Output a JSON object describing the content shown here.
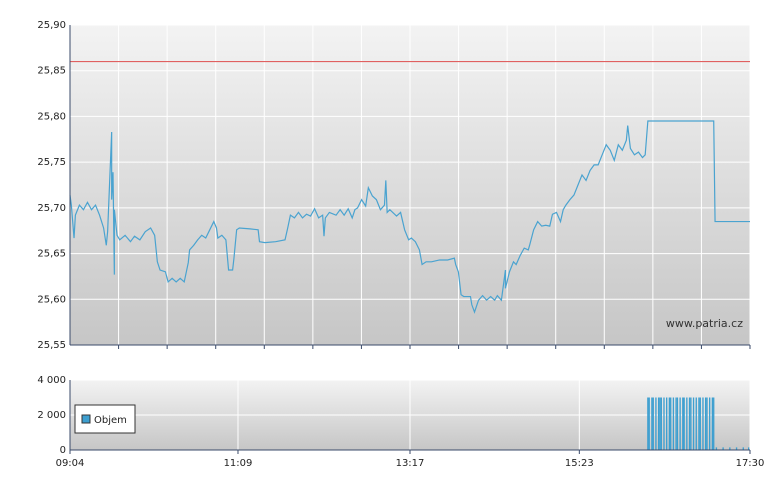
{
  "chart_data": [
    {
      "type": "line",
      "color": "#4aa3d0",
      "x": [
        "09:04",
        "09:05",
        "09:07",
        "09:08",
        "09:11",
        "09:14",
        "09:17",
        "09:20",
        "09:23",
        "09:26",
        "09:29",
        "09:31",
        "09:32",
        "09:35",
        "09:35",
        "09:36",
        "09:37",
        "09:37",
        "09:39",
        "09:41",
        "09:45",
        "09:49",
        "09:52",
        "09:56",
        "10:00",
        "10:04",
        "10:07",
        "10:09",
        "10:11",
        "10:15",
        "10:17",
        "10:20",
        "10:23",
        "10:26",
        "10:29",
        "10:32",
        "10:33",
        "10:36",
        "10:39",
        "10:42",
        "10:45",
        "10:48",
        "10:51",
        "10:53",
        "10:54",
        "10:57",
        "11:00",
        "11:02",
        "11:05",
        "11:06",
        "11:08",
        "11:10",
        "11:18",
        "11:24",
        "11:25",
        "11:29",
        "11:37",
        "11:44",
        "11:46",
        "11:48",
        "11:51",
        "11:54",
        "11:57",
        "12:00",
        "12:03",
        "12:06",
        "12:09",
        "12:12",
        "12:13",
        "12:14",
        "12:17",
        "12:22",
        "12:25",
        "12:28",
        "12:31",
        "12:34",
        "12:36",
        "12:38",
        "12:41",
        "12:44",
        "12:46",
        "12:49",
        "12:52",
        "12:55",
        "12:58",
        "12:59",
        "13:00",
        "13:02",
        "13:07",
        "13:10",
        "13:13",
        "13:16",
        "13:18",
        "13:21",
        "13:24",
        "13:26",
        "13:29",
        "13:33",
        "13:39",
        "13:45",
        "13:50",
        "13:51",
        "13:53",
        "13:55",
        "13:57",
        "14:02",
        "14:03",
        "14:05",
        "14:08",
        "14:11",
        "14:14",
        "14:17",
        "14:20",
        "14:22",
        "14:25",
        "14:28",
        "14:28",
        "14:31",
        "14:34",
        "14:36",
        "14:39",
        "14:42",
        "14:45",
        "14:46",
        "14:49",
        "14:52",
        "14:55",
        "14:58",
        "15:01",
        "15:03",
        "15:06",
        "15:09",
        "15:11",
        "15:13",
        "15:16",
        "15:19",
        "15:22",
        "15:25",
        "15:28",
        "15:31",
        "15:34",
        "15:37",
        "15:40",
        "15:43",
        "15:46",
        "15:49",
        "15:52",
        "15:55",
        "15:58",
        "15:59",
        "16:01",
        "16:04",
        "16:07",
        "16:10",
        "16:12",
        "16:14",
        "17:03",
        "17:04",
        "17:30"
      ],
      "values": [
        25.714,
        25.703,
        25.667,
        25.692,
        25.703,
        25.698,
        25.706,
        25.698,
        25.703,
        25.692,
        25.678,
        25.659,
        25.674,
        25.783,
        25.709,
        25.739,
        25.627,
        25.698,
        25.67,
        25.665,
        25.67,
        25.663,
        25.669,
        25.665,
        25.674,
        25.678,
        25.67,
        25.641,
        25.632,
        25.63,
        25.619,
        25.623,
        25.619,
        25.623,
        25.619,
        25.64,
        25.654,
        25.659,
        25.665,
        25.67,
        25.667,
        25.676,
        25.685,
        25.678,
        25.667,
        25.67,
        25.665,
        25.632,
        25.632,
        25.645,
        25.676,
        25.678,
        25.677,
        25.676,
        25.663,
        25.662,
        25.663,
        25.665,
        25.678,
        25.692,
        25.689,
        25.695,
        25.689,
        25.693,
        25.691,
        25.699,
        25.689,
        25.692,
        25.669,
        25.689,
        25.695,
        25.692,
        25.698,
        25.692,
        25.699,
        25.689,
        25.698,
        25.7,
        25.709,
        25.702,
        25.722,
        25.713,
        25.709,
        25.698,
        25.703,
        25.73,
        25.695,
        25.698,
        25.691,
        25.695,
        25.676,
        25.665,
        25.667,
        25.663,
        25.654,
        25.638,
        25.641,
        25.641,
        25.643,
        25.643,
        25.645,
        25.638,
        25.63,
        25.605,
        25.603,
        25.603,
        25.594,
        25.586,
        25.599,
        25.604,
        25.599,
        25.603,
        25.599,
        25.604,
        25.599,
        25.632,
        25.612,
        25.63,
        25.641,
        25.638,
        25.648,
        25.656,
        25.654,
        25.659,
        25.676,
        25.685,
        25.68,
        25.681,
        25.68,
        25.693,
        25.695,
        25.685,
        25.698,
        25.703,
        25.709,
        25.714,
        25.725,
        25.736,
        25.73,
        25.741,
        25.747,
        25.747,
        25.758,
        25.769,
        25.763,
        25.752,
        25.769,
        25.763,
        25.774,
        25.79,
        25.765,
        25.758,
        25.761,
        25.755,
        25.758,
        25.795,
        25.795,
        25.685,
        25.685
      ],
      "reference_line": {
        "value": 25.86,
        "color": "#e06060"
      },
      "annotation": "www.patria.cz",
      "xlim": [
        "09:04",
        "17:30"
      ],
      "ylim": [
        25.55,
        25.9
      ],
      "yticks": [
        {
          "value": 25.55,
          "label": "25,55"
        },
        {
          "value": 25.6,
          "label": "25,60"
        },
        {
          "value": 25.65,
          "label": "25,65"
        },
        {
          "value": 25.7,
          "label": "25,70"
        },
        {
          "value": 25.75,
          "label": "25,75"
        },
        {
          "value": 25.8,
          "label": "25,80"
        },
        {
          "value": 25.85,
          "label": "25,85"
        },
        {
          "value": 25.9,
          "label": "25,90"
        }
      ],
      "grid": true
    },
    {
      "type": "bar",
      "x": [
        "16:14",
        "16:15",
        "16:17",
        "16:18",
        "16:20",
        "16:22",
        "16:23",
        "16:24",
        "16:26",
        "16:28",
        "16:30",
        "16:31",
        "16:33",
        "16:35",
        "16:36",
        "16:38",
        "16:40",
        "16:41",
        "16:43",
        "16:45",
        "16:46",
        "16:48",
        "16:50",
        "16:52",
        "16:53",
        "16:55",
        "16:57",
        "16:58",
        "17:00",
        "17:02",
        "17:03",
        "17:05",
        "17:10",
        "17:15",
        "17:20",
        "17:25",
        "17:29"
      ],
      "series": [
        {
          "name": "Objem",
          "color": "#3d9fd0",
          "values": [
            3000,
            3000,
            3000,
            3000,
            3000,
            3000,
            3000,
            3000,
            3000,
            3000,
            3000,
            3000,
            3000,
            3000,
            3000,
            3000,
            3000,
            3000,
            3000,
            3000,
            3000,
            3000,
            3000,
            3000,
            3000,
            3000,
            3000,
            3000,
            3000,
            3000,
            3000,
            150,
            150,
            150,
            150,
            150,
            150
          ]
        }
      ],
      "xlim": [
        "09:04",
        "17:30"
      ],
      "xticks": [
        "09:04",
        "11:09",
        "13:17",
        "15:23",
        "17:30"
      ],
      "ylim": [
        0,
        4000
      ],
      "yticks": [
        0,
        {
          "value": 2000,
          "label": "2 000"
        },
        {
          "value": 4000,
          "label": "4 000"
        }
      ],
      "grid": true,
      "legend": "lower left"
    }
  ]
}
